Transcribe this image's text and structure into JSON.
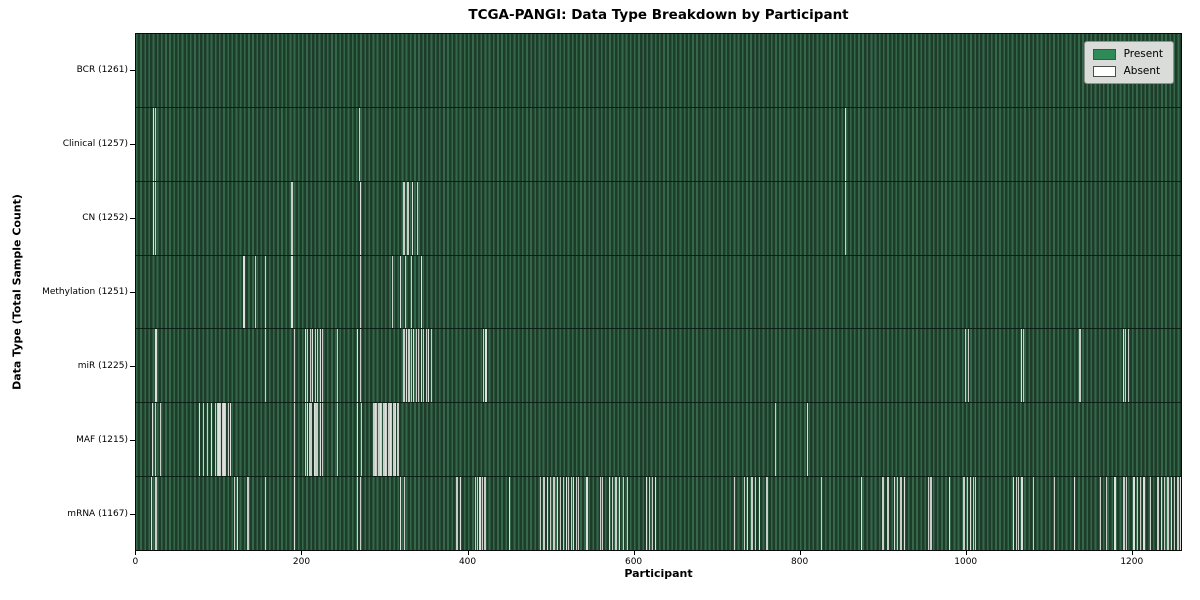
{
  "chart_data": {
    "type": "heatmap",
    "title": "TCGA-PANGI: Data Type Breakdown by Participant",
    "xlabel": "Participant",
    "ylabel": "Data Type (Total Sample Count)",
    "x_ticks": [
      0,
      200,
      400,
      600,
      800,
      1000,
      1200
    ],
    "x_range": [
      0,
      1261
    ],
    "grid": false,
    "legend_position": "upper right",
    "colors": {
      "present": "#2e8b57",
      "absent": "#ffffff",
      "stripe_dark": "#1d3c29",
      "stripe_light": "#35674a"
    },
    "legend": [
      {
        "label": "Present",
        "color": "#2e8b57"
      },
      {
        "label": "Absent",
        "color": "#ffffff"
      }
    ],
    "rows": [
      {
        "label": "BCR (1261)",
        "present_count": 1261,
        "absent_positions": []
      },
      {
        "label": "Clinical (1257)",
        "present_count": 1257,
        "absent_positions": [
          20,
          22,
          268,
          855
        ]
      },
      {
        "label": "CN (1252)",
        "present_count": 1252,
        "absent_positions": [
          20,
          22,
          187,
          270,
          322,
          327,
          332,
          338,
          855
        ]
      },
      {
        "label": "Methylation (1251)",
        "present_count": 1251,
        "absent_positions": [
          129,
          143,
          155,
          187,
          270,
          308,
          318,
          324,
          331,
          343
        ]
      },
      {
        "label": "miR (1225)",
        "present_count": 1225,
        "absent_positions": [
          23,
          155,
          190,
          203,
          206,
          209,
          212,
          215,
          218,
          221,
          224,
          242,
          266,
          270,
          322,
          325,
          328,
          331,
          334,
          337,
          340,
          343,
          346,
          349,
          352,
          355,
          418,
          421,
          1000,
          1003,
          1067,
          1070,
          1138,
          1190,
          1193,
          1196
        ]
      },
      {
        "label": "MAF (1215)",
        "present_count": 1215,
        "absent_positions": [
          19,
          22,
          28,
          75,
          80,
          85,
          90,
          95,
          97,
          99,
          101,
          103,
          105,
          107,
          110,
          113,
          190,
          203,
          206,
          208,
          210,
          214,
          216,
          218,
          221,
          224,
          242,
          266,
          271,
          286,
          288,
          289,
          292,
          294,
          295,
          298,
          300,
          301,
          304,
          306,
          307,
          310,
          312,
          315,
          770,
          809
        ]
      },
      {
        "label": "mRNA (1167)",
        "present_count": 1167,
        "absent_positions": [
          17,
          23,
          118,
          121,
          134,
          155,
          190,
          266,
          270,
          318,
          323,
          386,
          390,
          408,
          411,
          414,
          417,
          420,
          449,
          487,
          491,
          495,
          499,
          503,
          507,
          511,
          515,
          518,
          521,
          524,
          527,
          530,
          533,
          543,
          559,
          562,
          570,
          574,
          578,
          582,
          587,
          592,
          615,
          618,
          622,
          626,
          721,
          733,
          737,
          742,
          746,
          751,
          760,
          826,
          874,
          900,
          906,
          914,
          918,
          922,
          926,
          955,
          958,
          980,
          998,
          1002,
          1006,
          1009,
          1012,
          1058,
          1061,
          1064,
          1068,
          1082,
          1107,
          1131,
          1163,
          1170,
          1180,
          1191,
          1194,
          1203,
          1207,
          1211,
          1215,
          1223,
          1232,
          1236,
          1240,
          1244,
          1248,
          1252,
          1256,
          1259
        ]
      }
    ]
  }
}
